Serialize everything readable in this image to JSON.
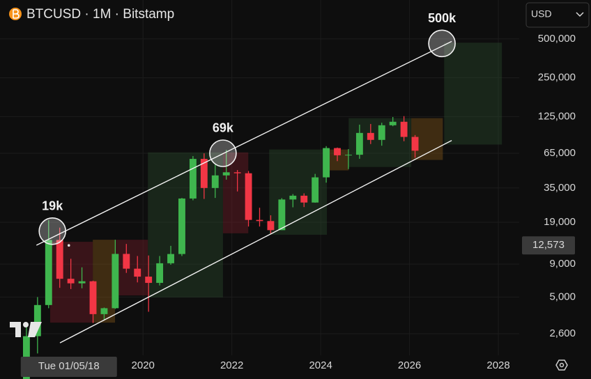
{
  "header": {
    "symbol": "BTCUSD · 1M · Bitstamp",
    "currency": "USD"
  },
  "chart_data": {
    "type": "candlestick",
    "log_scale": true,
    "grid": true,
    "up_color": "#3fb64e",
    "down_color": "#f23645",
    "x": [
      2017.375,
      2017.625,
      2017.875,
      2018.125,
      2018.375,
      2018.625,
      2018.875,
      2019.125,
      2019.375,
      2019.625,
      2019.875,
      2020.125,
      2020.375,
      2020.625,
      2020.875,
      2021.125,
      2021.375,
      2021.625,
      2021.875,
      2022.125,
      2022.375,
      2022.625,
      2022.875,
      2023.125,
      2023.375,
      2023.625,
      2023.875,
      2024.125,
      2024.375,
      2024.625,
      2024.875,
      2025.125,
      2025.375,
      2025.625,
      2025.875,
      2026.125
    ],
    "open": [
      1080,
      2490,
      4340,
      13850,
      6930,
      6390,
      6630,
      3690,
      4100,
      10800,
      8300,
      7200,
      6440,
      9140,
      10780,
      29000,
      58800,
      35000,
      43800,
      46300,
      45500,
      19800,
      19400,
      16500,
      28500,
      30500,
      27000,
      42300,
      71300,
      62700,
      63300,
      93400,
      82500,
      107100,
      114000,
      87000
    ],
    "high": [
      3000,
      5000,
      19700,
      17250,
      9900,
      8500,
      6700,
      4150,
      13900,
      12900,
      10400,
      10500,
      10400,
      12470,
      29300,
      61800,
      64900,
      52900,
      69000,
      48200,
      47400,
      24600,
      21500,
      29200,
      31400,
      31800,
      45000,
      73800,
      72000,
      70000,
      108300,
      109600,
      112000,
      124100,
      126000,
      90000
    ],
    "low": [
      1060,
      1830,
      4100,
      5900,
      5770,
      5850,
      3150,
      3350,
      4050,
      7700,
      6500,
      3850,
      6150,
      8900,
      10400,
      28100,
      28800,
      29300,
      40600,
      32900,
      17600,
      17600,
      15500,
      16500,
      24800,
      24900,
      26900,
      38500,
      56500,
      49000,
      58900,
      76600,
      74400,
      105300,
      80600,
      60000
    ],
    "close": [
      2490,
      4340,
      13850,
      6930,
      6390,
      6630,
      3690,
      4100,
      10800,
      8300,
      7200,
      6440,
      9140,
      10780,
      29000,
      58800,
      35000,
      43800,
      46300,
      45500,
      19800,
      19400,
      16500,
      28500,
      30500,
      27000,
      42300,
      71300,
      62700,
      63300,
      93400,
      82500,
      107100,
      114000,
      87000,
      68000
    ],
    "xlim": [
      2016.78,
      2028.47
    ],
    "xticks": [
      2020,
      2022,
      2024,
      2026,
      2028
    ],
    "ylim": [
      1770,
      1000000
    ],
    "yticks": [
      {
        "value": 2600,
        "label": "2,600"
      },
      {
        "value": 5000,
        "label": "5,000"
      },
      {
        "value": 9000,
        "label": "9,000"
      },
      {
        "value": 19000,
        "label": "19,000"
      },
      {
        "value": 35000,
        "label": "35,000"
      },
      {
        "value": 65000,
        "label": "65,000"
      },
      {
        "value": 125000,
        "label": "125,000"
      },
      {
        "value": 250000,
        "label": "250,000"
      },
      {
        "value": 500000,
        "label": "500,000"
      }
    ],
    "zones": [
      {
        "x": [
          2017.91,
          2018.87
        ],
        "y": [
          3170,
          13400
        ],
        "color": "#7a1f2b66"
      },
      {
        "x": [
          2018.87,
          2019.37
        ],
        "y": [
          3170,
          13900
        ],
        "color": "#8a5a1a66"
      },
      {
        "x": [
          2019.37,
          2020.11
        ],
        "y": [
          5150,
          13900
        ],
        "color": "#7a1f2b66"
      },
      {
        "x": [
          2020.11,
          2021.8
        ],
        "y": [
          4970,
          66000
        ],
        "color": "#2a4a2e66"
      },
      {
        "x": [
          2021.8,
          2022.37
        ],
        "y": [
          15600,
          66000
        ],
        "color": "#7a1f2b66"
      },
      {
        "x": [
          2022.84,
          2024.14
        ],
        "y": [
          15200,
          69500
        ],
        "color": "#2a4a2e66"
      },
      {
        "x": [
          2024.14,
          2024.63
        ],
        "y": [
          47900,
          69500
        ],
        "color": "#8a5a1a66"
      },
      {
        "x": [
          2024.63,
          2026.04
        ],
        "y": [
          50900,
          121600
        ],
        "color": "#2a4a2e66"
      },
      {
        "x": [
          2026.04,
          2026.75
        ],
        "y": [
          57700,
          121600
        ],
        "color": "#8a5a1a66"
      },
      {
        "x": [
          2026.78,
          2028.08
        ],
        "y": [
          75900,
          467000
        ],
        "color": "#2a4a2e66"
      }
    ],
    "trendlines": [
      {
        "x": [
          2017.6,
          2026.95
        ],
        "y": [
          12600,
          478000
        ]
      },
      {
        "x": [
          2018.13,
          2026.95
        ],
        "y": [
          2210,
          81700
        ]
      }
    ],
    "annotations": [
      {
        "text": "19k",
        "x": 2017.96,
        "y": 16200
      },
      {
        "text": "69k",
        "x": 2021.8,
        "y": 65000
      },
      {
        "text": "500k",
        "x": 2026.73,
        "y": 461000
      }
    ],
    "crosshair": {
      "x": {
        "value": 2018.33,
        "label": "Tue 01/05/18"
      },
      "y": {
        "value": 12573,
        "label": "12,573"
      }
    }
  }
}
